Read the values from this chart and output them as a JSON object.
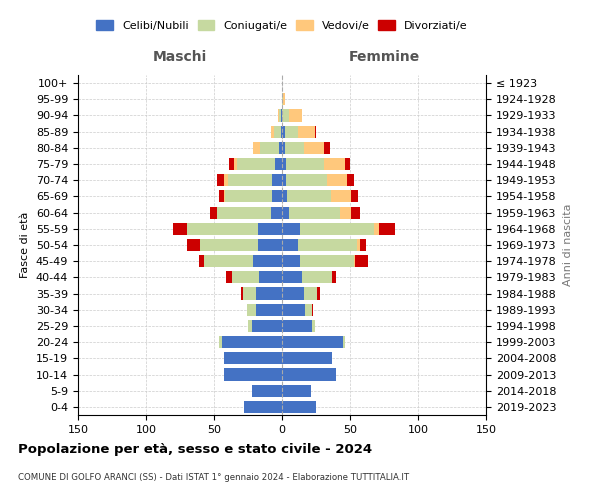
{
  "age_groups": [
    "0-4",
    "5-9",
    "10-14",
    "15-19",
    "20-24",
    "25-29",
    "30-34",
    "35-39",
    "40-44",
    "45-49",
    "50-54",
    "55-59",
    "60-64",
    "65-69",
    "70-74",
    "75-79",
    "80-84",
    "85-89",
    "90-94",
    "95-99",
    "100+"
  ],
  "birth_years": [
    "2019-2023",
    "2014-2018",
    "2009-2013",
    "2004-2008",
    "1999-2003",
    "1994-1998",
    "1989-1993",
    "1984-1988",
    "1979-1983",
    "1974-1978",
    "1969-1973",
    "1964-1968",
    "1959-1963",
    "1954-1958",
    "1949-1953",
    "1944-1948",
    "1939-1943",
    "1934-1938",
    "1929-1933",
    "1924-1928",
    "≤ 1923"
  ],
  "maschi": {
    "celibi": [
      28,
      22,
      43,
      43,
      44,
      22,
      19,
      19,
      17,
      21,
      18,
      18,
      8,
      7,
      7,
      5,
      2,
      1,
      1,
      0,
      0
    ],
    "coniugati": [
      0,
      0,
      0,
      0,
      2,
      3,
      7,
      10,
      20,
      36,
      42,
      52,
      40,
      35,
      33,
      28,
      14,
      5,
      1,
      0,
      0
    ],
    "vedovi": [
      0,
      0,
      0,
      0,
      0,
      0,
      0,
      0,
      0,
      0,
      0,
      0,
      0,
      1,
      3,
      2,
      5,
      2,
      1,
      0,
      0
    ],
    "divorziati": [
      0,
      0,
      0,
      0,
      0,
      0,
      0,
      1,
      4,
      4,
      10,
      10,
      5,
      3,
      5,
      4,
      0,
      0,
      0,
      0,
      0
    ]
  },
  "femmine": {
    "nubili": [
      25,
      21,
      40,
      37,
      45,
      22,
      17,
      16,
      15,
      13,
      12,
      13,
      5,
      4,
      3,
      3,
      2,
      2,
      0,
      0,
      0
    ],
    "coniugate": [
      0,
      0,
      0,
      0,
      1,
      2,
      5,
      10,
      22,
      40,
      43,
      55,
      38,
      32,
      30,
      28,
      14,
      10,
      5,
      1,
      0
    ],
    "vedove": [
      0,
      0,
      0,
      0,
      0,
      0,
      0,
      0,
      0,
      1,
      2,
      3,
      8,
      15,
      15,
      15,
      15,
      12,
      10,
      1,
      0
    ],
    "divorziate": [
      0,
      0,
      0,
      0,
      0,
      0,
      1,
      2,
      3,
      9,
      5,
      12,
      6,
      5,
      5,
      4,
      4,
      1,
      0,
      0,
      0
    ]
  },
  "colors": {
    "celibi_nubili": "#4472c4",
    "coniugati": "#c6d9a0",
    "vedovi": "#ffc87c",
    "divorziati": "#cc0000"
  },
  "xlim": 150,
  "title": "Popolazione per età, sesso e stato civile - 2024",
  "subtitle": "COMUNE DI GOLFO ARANCI (SS) - Dati ISTAT 1° gennaio 2024 - Elaborazione TUTTITALIA.IT",
  "ylabel_left": "Fasce di età",
  "ylabel_right": "Anni di nascita",
  "xlabel_left": "Maschi",
  "xlabel_right": "Femmine"
}
